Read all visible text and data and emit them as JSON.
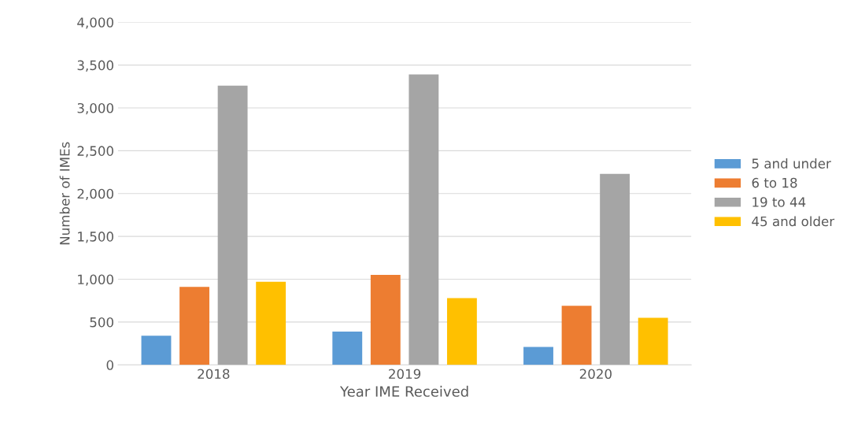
{
  "chart_data": {
    "type": "bar",
    "xlabel": "Year IME Received",
    "ylabel": "Number of IMEs",
    "categories": [
      "2018",
      "2019",
      "2020"
    ],
    "series": [
      {
        "name": "5 and under",
        "color": "#5b9bd5",
        "values": [
          340,
          390,
          210
        ]
      },
      {
        "name": "6 to 18",
        "color": "#ed7d31",
        "values": [
          910,
          1050,
          690
        ]
      },
      {
        "name": "19 to 44",
        "color": "#a5a5a5",
        "values": [
          3260,
          3390,
          2230
        ]
      },
      {
        "name": "45 and older",
        "color": "#ffc000",
        "values": [
          970,
          780,
          550
        ]
      }
    ],
    "ylim": [
      0,
      4000
    ],
    "yticks": [
      {
        "value": 0,
        "label": "0"
      },
      {
        "value": 500,
        "label": "500"
      },
      {
        "value": 1000,
        "label": "1,000"
      },
      {
        "value": 1500,
        "label": "1,500"
      },
      {
        "value": 2000,
        "label": "2,000"
      },
      {
        "value": 2500,
        "label": "2,500"
      },
      {
        "value": 3000,
        "label": "3,000"
      },
      {
        "value": 3500,
        "label": "3,500"
      },
      {
        "value": 4000,
        "label": "4,000"
      }
    ],
    "grid": "y",
    "legend": "right"
  }
}
